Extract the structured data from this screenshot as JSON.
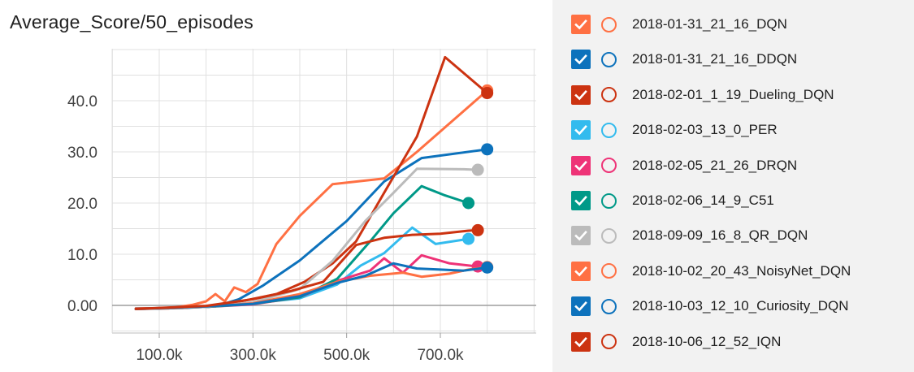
{
  "chart_data": {
    "type": "line",
    "title": "Average_Score/50_episodes",
    "xlabel": "",
    "ylabel": "",
    "xlim": [
      0,
      900000
    ],
    "ylim": [
      -5,
      53
    ],
    "x_ticks": [
      100000,
      300000,
      500000,
      700000
    ],
    "x_tick_labels": [
      "100.0k",
      "300.0k",
      "500.0k",
      "700.0k"
    ],
    "y_ticks": [
      0,
      10,
      20,
      30,
      40
    ],
    "y_tick_labels": [
      "0.00",
      "10.0",
      "20.0",
      "30.0",
      "40.0"
    ],
    "grid": true,
    "legend_position": "right",
    "series": [
      {
        "name": "2018-01-31_21_16_DQN",
        "color": "#ff7043",
        "points": [
          [
            50000,
            -0.7
          ],
          [
            120000,
            -0.6
          ],
          [
            170000,
            0.1
          ],
          [
            200000,
            0.8
          ],
          [
            220000,
            2.2
          ],
          [
            240000,
            0.8
          ],
          [
            260000,
            3.5
          ],
          [
            285000,
            2.6
          ],
          [
            310000,
            4.2
          ],
          [
            350000,
            12
          ],
          [
            400000,
            17.5
          ],
          [
            470000,
            23.7
          ],
          [
            580000,
            24.8
          ],
          [
            650000,
            30
          ],
          [
            800000,
            42
          ]
        ]
      },
      {
        "name": "2018-01-31_21_16_DDQN",
        "color": "#0d72bc",
        "points": [
          [
            50000,
            -0.7
          ],
          [
            150000,
            -0.5
          ],
          [
            220000,
            -0.2
          ],
          [
            270000,
            1.2
          ],
          [
            320000,
            3.8
          ],
          [
            400000,
            8.8
          ],
          [
            500000,
            16.5
          ],
          [
            580000,
            24.2
          ],
          [
            660000,
            28.8
          ],
          [
            800000,
            30.5
          ]
        ]
      },
      {
        "name": "2018-02-01_1_19_Dueling_DQN",
        "color": "#cc3311",
        "points": [
          [
            50000,
            -0.6
          ],
          [
            150000,
            -0.5
          ],
          [
            220000,
            -0.1
          ],
          [
            280000,
            0.9
          ],
          [
            350000,
            2.2
          ],
          [
            410000,
            4.6
          ],
          [
            470000,
            8.2
          ],
          [
            520000,
            12.5
          ],
          [
            580000,
            22
          ],
          [
            650000,
            33
          ],
          [
            710000,
            48.5
          ],
          [
            800000,
            41.5
          ]
        ]
      },
      {
        "name": "2018-02-03_13_0_PER",
        "color": "#33bbee",
        "points": [
          [
            50000,
            -0.7
          ],
          [
            200000,
            -0.3
          ],
          [
            300000,
            0.4
          ],
          [
            400000,
            1.4
          ],
          [
            480000,
            4.1
          ],
          [
            530000,
            7.8
          ],
          [
            580000,
            10.2
          ],
          [
            640000,
            15.2
          ],
          [
            690000,
            12
          ],
          [
            760000,
            13
          ]
        ]
      },
      {
        "name": "2018-02-05_21_26_DRQN",
        "color": "#ee3377",
        "points": [
          [
            50000,
            -0.7
          ],
          [
            200000,
            -0.3
          ],
          [
            300000,
            0.2
          ],
          [
            400000,
            1.6
          ],
          [
            480000,
            4.8
          ],
          [
            550000,
            6.8
          ],
          [
            580000,
            9.2
          ],
          [
            620000,
            6.4
          ],
          [
            660000,
            9.8
          ],
          [
            720000,
            8.2
          ],
          [
            780000,
            7.6
          ]
        ]
      },
      {
        "name": "2018-02-06_14_9_C51",
        "color": "#009988",
        "points": [
          [
            50000,
            -0.7
          ],
          [
            200000,
            -0.3
          ],
          [
            300000,
            0.3
          ],
          [
            400000,
            1.6
          ],
          [
            480000,
            5.2
          ],
          [
            550000,
            12.5
          ],
          [
            600000,
            18
          ],
          [
            660000,
            23.3
          ],
          [
            710000,
            21.5
          ],
          [
            760000,
            20
          ]
        ]
      },
      {
        "name": "2018-09-09_16_8_QR_DQN",
        "color": "#bbbbbb",
        "points": [
          [
            50000,
            -0.7
          ],
          [
            200000,
            -0.3
          ],
          [
            300000,
            0.6
          ],
          [
            400000,
            3.2
          ],
          [
            470000,
            8.7
          ],
          [
            540000,
            16.5
          ],
          [
            600000,
            22
          ],
          [
            650000,
            26.7
          ],
          [
            750000,
            26.6
          ],
          [
            780000,
            26.5
          ]
        ]
      },
      {
        "name": "2018-10-02_20_43_NoisyNet_DQN",
        "color": "#ff7043",
        "points": [
          [
            50000,
            -0.7
          ],
          [
            200000,
            -0.2
          ],
          [
            300000,
            0.4
          ],
          [
            400000,
            2.2
          ],
          [
            480000,
            4.6
          ],
          [
            550000,
            5.8
          ],
          [
            620000,
            6.4
          ],
          [
            660000,
            5.6
          ],
          [
            720000,
            6.2
          ],
          [
            760000,
            7
          ],
          [
            800000,
            7.5
          ]
        ]
      },
      {
        "name": "2018-10-03_12_10_Curiosity_DQN",
        "color": "#0d72bc",
        "points": [
          [
            50000,
            -0.7
          ],
          [
            200000,
            -0.2
          ],
          [
            300000,
            0.3
          ],
          [
            400000,
            1.8
          ],
          [
            480000,
            4.4
          ],
          [
            540000,
            5.8
          ],
          [
            600000,
            8.2
          ],
          [
            650000,
            7.2
          ],
          [
            700000,
            7
          ],
          [
            750000,
            6.8
          ],
          [
            800000,
            7.4
          ]
        ]
      },
      {
        "name": "2018-10-06_12_52_IQN",
        "color": "#cc3311",
        "points": [
          [
            50000,
            -0.7
          ],
          [
            200000,
            -0.1
          ],
          [
            300000,
            1.2
          ],
          [
            380000,
            2.8
          ],
          [
            450000,
            4.6
          ],
          [
            520000,
            11.8
          ],
          [
            580000,
            13.2
          ],
          [
            640000,
            13.8
          ],
          [
            700000,
            14
          ],
          [
            760000,
            14.6
          ],
          [
            780000,
            14.7
          ]
        ]
      }
    ]
  }
}
